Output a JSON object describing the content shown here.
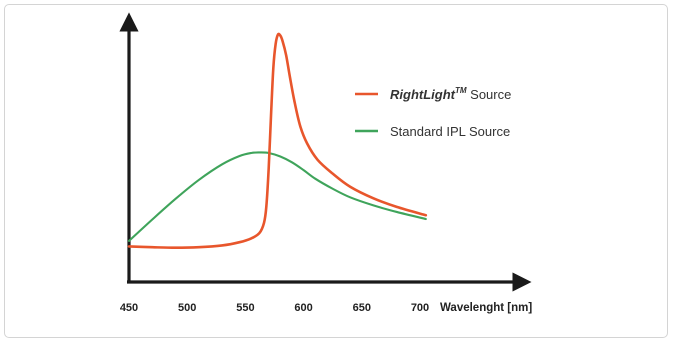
{
  "chart_data": {
    "type": "line",
    "title": "",
    "xlabel": "Wavelenght [nm]",
    "ylabel": "",
    "xlim": [
      450,
      720
    ],
    "ylim": [
      0,
      1
    ],
    "x_ticks": [
      "450",
      "500",
      "550",
      "600",
      "650",
      "700"
    ],
    "grid": false,
    "legend_position": "right",
    "legend": [
      {
        "name_bold": "RightLight",
        "name_sup": "TM",
        "name_rest": " Source",
        "color": "#e8562c"
      },
      {
        "name": "Standard IPL Source",
        "color": "#3fa45b"
      }
    ],
    "series": [
      {
        "name": "RightLight™ Source",
        "color": "#e8562c",
        "x": [
          450,
          470,
          490,
          510,
          530,
          545,
          555,
          562,
          566,
          568,
          570,
          572,
          574,
          576,
          578,
          580,
          582,
          585,
          588,
          592,
          597,
          603,
          612,
          625,
          640,
          660,
          680,
          705
        ],
        "y": [
          0.141,
          0.138,
          0.136,
          0.138,
          0.145,
          0.158,
          0.173,
          0.194,
          0.235,
          0.3,
          0.45,
          0.66,
          0.85,
          0.945,
          0.982,
          0.978,
          0.955,
          0.9,
          0.82,
          0.72,
          0.62,
          0.55,
          0.485,
          0.43,
          0.378,
          0.332,
          0.298,
          0.265
        ]
      },
      {
        "name": "Standard IPL Source",
        "color": "#3fa45b",
        "x": [
          450,
          470,
          490,
          510,
          530,
          545,
          555,
          562,
          570,
          580,
          590,
          600,
          610,
          625,
          640,
          660,
          680,
          705
        ],
        "y": [
          0.163,
          0.248,
          0.33,
          0.405,
          0.467,
          0.5,
          0.512,
          0.514,
          0.512,
          0.498,
          0.475,
          0.444,
          0.41,
          0.37,
          0.336,
          0.304,
          0.278,
          0.25
        ]
      }
    ]
  }
}
